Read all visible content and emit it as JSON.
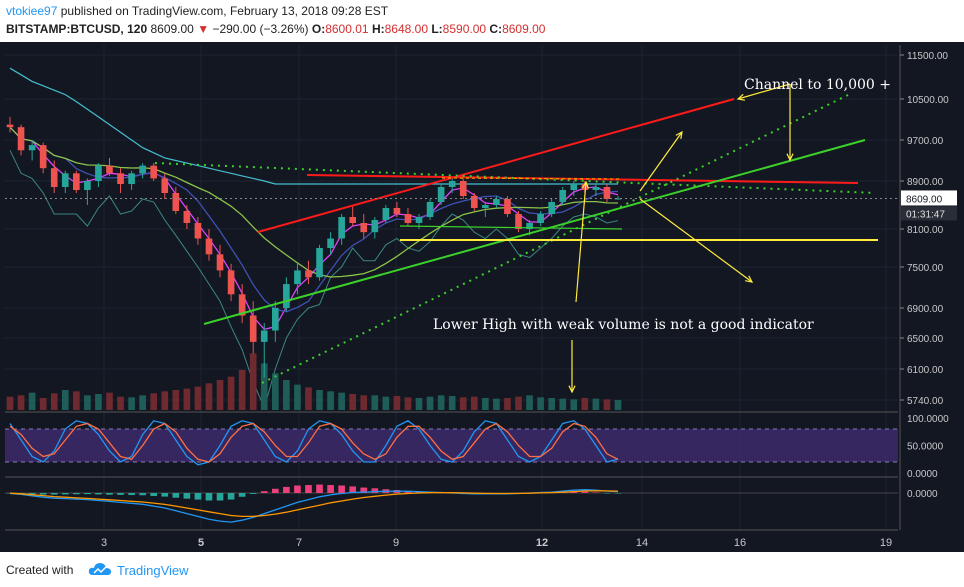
{
  "header": {
    "author": "vtokiee97",
    "published": "published on TradingView.com, February 13, 2018 09:28 EST",
    "symbol": "BITSTAMP:BTCUSD, 120",
    "price": "8609.00",
    "change": "−290.00 (−3.26%)",
    "open_label": "O:",
    "open": "8600.01",
    "high_label": "H:",
    "high": "8648.00",
    "low_label": "L:",
    "low": "8590.00",
    "close_label": "C:",
    "close": "8609.00"
  },
  "footer": {
    "created_with": "Created with",
    "brand": "TradingView"
  },
  "colors": {
    "background": "#131722",
    "up": "#26a69a",
    "down": "#ef5350",
    "red_line": "#ff1a1a",
    "green_line": "#3bd12a",
    "yellow": "#ffeb3b",
    "ma_yellow_green": "#8bc34a",
    "ma_cyan": "#4dd0e1",
    "ma_blue": "#3f51b5",
    "ma_magenta": "#e040fb"
  },
  "chart_data": [
    {
      "type": "candlestick",
      "title": "BITSTAMP:BTCUSD, 120",
      "price_axis": [
        "11500.00",
        "10500.00",
        "9700.00",
        "8900.00",
        "8100.00",
        "7500.00",
        "6900.00",
        "6500.00",
        "6100.00",
        "5740.00"
      ],
      "time_axis": [
        "3",
        "5",
        "7",
        "9",
        "12",
        "14",
        "16",
        "19"
      ],
      "price_label": "8609.00",
      "countdown_label": "01:31:47",
      "ohlc_series": [
        [
          10000,
          10150,
          9850,
          9950
        ],
        [
          9950,
          10000,
          9400,
          9500
        ],
        [
          9500,
          9700,
          9300,
          9600
        ],
        [
          9600,
          9650,
          9050,
          9150
        ],
        [
          9150,
          9300,
          8700,
          8800
        ],
        [
          8800,
          9100,
          8700,
          9050
        ],
        [
          9050,
          9100,
          8700,
          8750
        ],
        [
          8750,
          8950,
          8500,
          8900
        ],
        [
          8900,
          9250,
          8800,
          9200
        ],
        [
          9200,
          9350,
          9000,
          9050
        ],
        [
          9050,
          9150,
          8700,
          8850
        ],
        [
          8850,
          9100,
          8750,
          9050
        ],
        [
          9050,
          9250,
          8950,
          9200
        ],
        [
          9200,
          9250,
          8900,
          8950
        ],
        [
          8950,
          9050,
          8600,
          8700
        ],
        [
          8700,
          8800,
          8350,
          8400
        ],
        [
          8400,
          8500,
          8100,
          8200
        ],
        [
          8200,
          8300,
          7850,
          7950
        ],
        [
          7950,
          8100,
          7600,
          7700
        ],
        [
          7700,
          7850,
          7350,
          7450
        ],
        [
          7450,
          7550,
          7000,
          7100
        ],
        [
          7100,
          7250,
          6700,
          6800
        ],
        [
          6800,
          7000,
          6300,
          6450
        ],
        [
          6450,
          6700,
          6000,
          6600
        ],
        [
          6600,
          7000,
          6450,
          6900
        ],
        [
          6900,
          7350,
          6850,
          7250
        ],
        [
          7250,
          7550,
          7100,
          7450
        ],
        [
          7450,
          7600,
          7250,
          7350
        ],
        [
          7350,
          7850,
          7300,
          7800
        ],
        [
          7800,
          8050,
          7700,
          7950
        ],
        [
          7950,
          8350,
          7850,
          8300
        ],
        [
          8300,
          8500,
          8150,
          8200
        ],
        [
          8200,
          8350,
          7950,
          8050
        ],
        [
          8050,
          8300,
          7950,
          8250
        ],
        [
          8250,
          8500,
          8200,
          8450
        ],
        [
          8450,
          8550,
          8300,
          8350
        ],
        [
          8350,
          8450,
          8150,
          8200
        ],
        [
          8200,
          8350,
          8100,
          8300
        ],
        [
          8300,
          8600,
          8250,
          8550
        ],
        [
          8550,
          8850,
          8500,
          8800
        ],
        [
          8800,
          8950,
          8700,
          8900
        ],
        [
          8900,
          8950,
          8600,
          8650
        ],
        [
          8650,
          8700,
          8400,
          8450
        ],
        [
          8450,
          8550,
          8300,
          8500
        ],
        [
          8500,
          8650,
          8450,
          8600
        ],
        [
          8600,
          8650,
          8300,
          8350
        ],
        [
          8350,
          8400,
          8050,
          8100
        ],
        [
          8100,
          8250,
          8000,
          8200
        ],
        [
          8200,
          8400,
          8150,
          8350
        ],
        [
          8350,
          8600,
          8300,
          8550
        ],
        [
          8550,
          8800,
          8500,
          8750
        ],
        [
          8750,
          8900,
          8650,
          8850
        ],
        [
          8850,
          8900,
          8700,
          8750
        ],
        [
          8750,
          8850,
          8650,
          8800
        ],
        [
          8800,
          8850,
          8550,
          8600
        ],
        [
          8600,
          8650,
          8590,
          8609
        ]
      ],
      "volume_series": [
        20,
        22,
        26,
        18,
        25,
        30,
        28,
        22,
        24,
        26,
        20,
        19,
        22,
        25,
        28,
        30,
        32,
        35,
        40,
        45,
        50,
        60,
        85,
        70,
        55,
        45,
        38,
        34,
        30,
        28,
        26,
        24,
        22,
        22,
        20,
        21,
        19,
        18,
        20,
        22,
        21,
        19,
        20,
        18,
        17,
        18,
        20,
        22,
        19,
        18,
        17,
        16,
        18,
        17,
        16,
        15
      ],
      "bb_upper": [
        11200,
        11050,
        10900,
        10800,
        10700,
        10600,
        10450,
        10300,
        10150,
        10000,
        9850,
        9700,
        9550,
        9450,
        9350,
        9300,
        9250,
        9200,
        9150,
        9100,
        9050,
        9000,
        8950,
        8900,
        8850,
        8850,
        8850,
        8850,
        8850,
        8850,
        8850,
        8850,
        8850,
        8850,
        8850,
        8850,
        8850,
        8850,
        8850,
        8850,
        8850,
        8850,
        8850,
        8850,
        8850,
        8850,
        8850,
        8850,
        8850,
        8850,
        8850,
        8850,
        8850,
        8850,
        8850,
        8850
      ],
      "annotations": {
        "channel": "Channel to 10,000 +",
        "lower_high": "Lower High with weak volume is not a good indicator"
      },
      "stochastic": {
        "axis": [
          "100.0000",
          "50.0000",
          "0.0000"
        ],
        "k": [
          90,
          60,
          30,
          20,
          40,
          80,
          95,
          90,
          70,
          40,
          20,
          30,
          70,
          95,
          90,
          60,
          30,
          15,
          20,
          50,
          85,
          95,
          90,
          60,
          30,
          20,
          40,
          80,
          95,
          90,
          70,
          40,
          20,
          20,
          50,
          85,
          95,
          80,
          50,
          25,
          20,
          40,
          75,
          95,
          90,
          60,
          30,
          20,
          30,
          60,
          90,
          95,
          80,
          50,
          20,
          25
        ],
        "d": [
          85,
          70,
          45,
          30,
          35,
          60,
          85,
          90,
          80,
          55,
          30,
          25,
          50,
          80,
          90,
          75,
          45,
          25,
          20,
          35,
          65,
          85,
          90,
          75,
          50,
          30,
          30,
          55,
          85,
          90,
          80,
          55,
          35,
          25,
          35,
          65,
          85,
          85,
          65,
          40,
          25,
          30,
          55,
          80,
          90,
          75,
          50,
          30,
          30,
          45,
          75,
          90,
          85,
          65,
          35,
          25
        ]
      },
      "macd": {
        "axis": [
          "0.0000"
        ],
        "macd": [
          -5,
          -15,
          -30,
          -45,
          -55,
          -60,
          -65,
          -70,
          -80,
          -90,
          -100,
          -110,
          -120,
          -140,
          -160,
          -190,
          -220,
          -250,
          -280,
          -300,
          -310,
          -290,
          -260,
          -220,
          -180,
          -140,
          -100,
          -70,
          -40,
          -20,
          -5,
          5,
          10,
          15,
          18,
          20,
          18,
          15,
          10,
          5,
          0,
          -5,
          -8,
          -10,
          -10,
          -8,
          -5,
          0,
          5,
          10,
          20,
          30,
          35,
          30,
          20,
          15
        ],
        "signal": [
          -2,
          -8,
          -18,
          -28,
          -38,
          -45,
          -52,
          -58,
          -65,
          -72,
          -80,
          -88,
          -96,
          -108,
          -122,
          -140,
          -160,
          -180,
          -200,
          -220,
          -240,
          -250,
          -250,
          -240,
          -225,
          -205,
          -180,
          -155,
          -130,
          -105,
          -85,
          -65,
          -48,
          -35,
          -22,
          -12,
          -5,
          0,
          3,
          4,
          3,
          1,
          -2,
          -4,
          -5,
          -5,
          -4,
          -2,
          1,
          4,
          9,
          15,
          21,
          24,
          22,
          20
        ],
        "histogram": [
          -3,
          -7,
          -12,
          -17,
          -17,
          -15,
          -13,
          -12,
          -15,
          -18,
          -20,
          -22,
          -24,
          -32,
          -38,
          -50,
          -60,
          -70,
          -80,
          -80,
          -70,
          -40,
          -10,
          20,
          45,
          65,
          80,
          85,
          90,
          85,
          80,
          70,
          58,
          50,
          40,
          32,
          23,
          15,
          7,
          1,
          -3,
          -6,
          -6,
          -6,
          -5,
          -3,
          -1,
          2,
          4,
          6,
          11,
          15,
          14,
          6,
          -2,
          -5
        ]
      }
    }
  ]
}
